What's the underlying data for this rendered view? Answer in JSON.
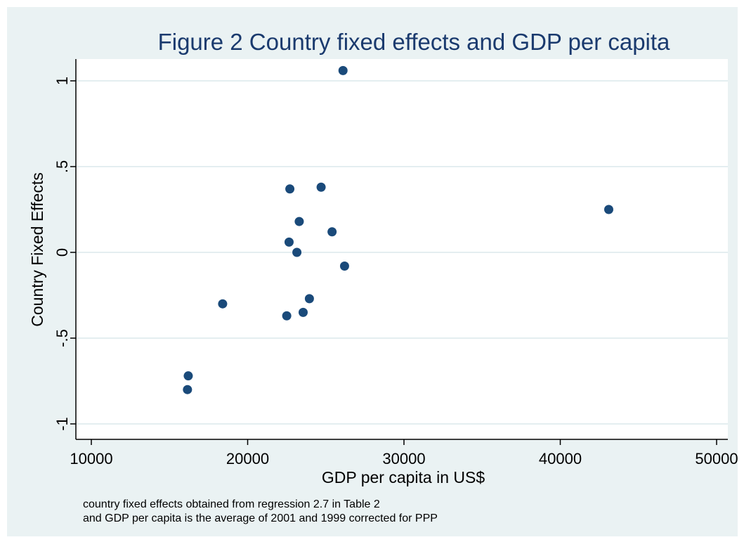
{
  "chart_data": {
    "type": "scatter",
    "title": "Figure 2 Country fixed effects and GDP per capita",
    "xlabel": "GDP per capita in US$",
    "ylabel": "Country Fixed Effects",
    "xlim": [
      10000,
      50000
    ],
    "ylim": [
      -1.05,
      1.12
    ],
    "x_ticks": [
      10000,
      20000,
      30000,
      40000,
      50000
    ],
    "x_tick_labels": [
      "10000",
      "20000",
      "30000",
      "40000",
      "50000"
    ],
    "y_ticks": [
      -1,
      -0.5,
      0,
      0.5,
      1
    ],
    "y_tick_labels": [
      "-1",
      "-.5",
      "0",
      ".5",
      "1"
    ],
    "grid": true,
    "marker_color": "#1a4a7a",
    "plot_background": "#ffffff",
    "figure_background": "#eaf2f3",
    "points": [
      {
        "x": 26100,
        "y": 1.06
      },
      {
        "x": 24700,
        "y": 0.38
      },
      {
        "x": 22700,
        "y": 0.37
      },
      {
        "x": 43100,
        "y": 0.25
      },
      {
        "x": 23300,
        "y": 0.18
      },
      {
        "x": 25400,
        "y": 0.12
      },
      {
        "x": 22650,
        "y": 0.06
      },
      {
        "x": 23150,
        "y": 0.0
      },
      {
        "x": 26200,
        "y": -0.08
      },
      {
        "x": 23950,
        "y": -0.27
      },
      {
        "x": 18400,
        "y": -0.3
      },
      {
        "x": 23550,
        "y": -0.35
      },
      {
        "x": 22500,
        "y": -0.37
      },
      {
        "x": 16200,
        "y": -0.72
      },
      {
        "x": 16150,
        "y": -0.8
      }
    ]
  },
  "notes": [
    "country fixed effects obtained from regression 2.7 in Table 2",
    "and GDP per capita is the average of 2001 and 1999 corrected for PPP"
  ]
}
